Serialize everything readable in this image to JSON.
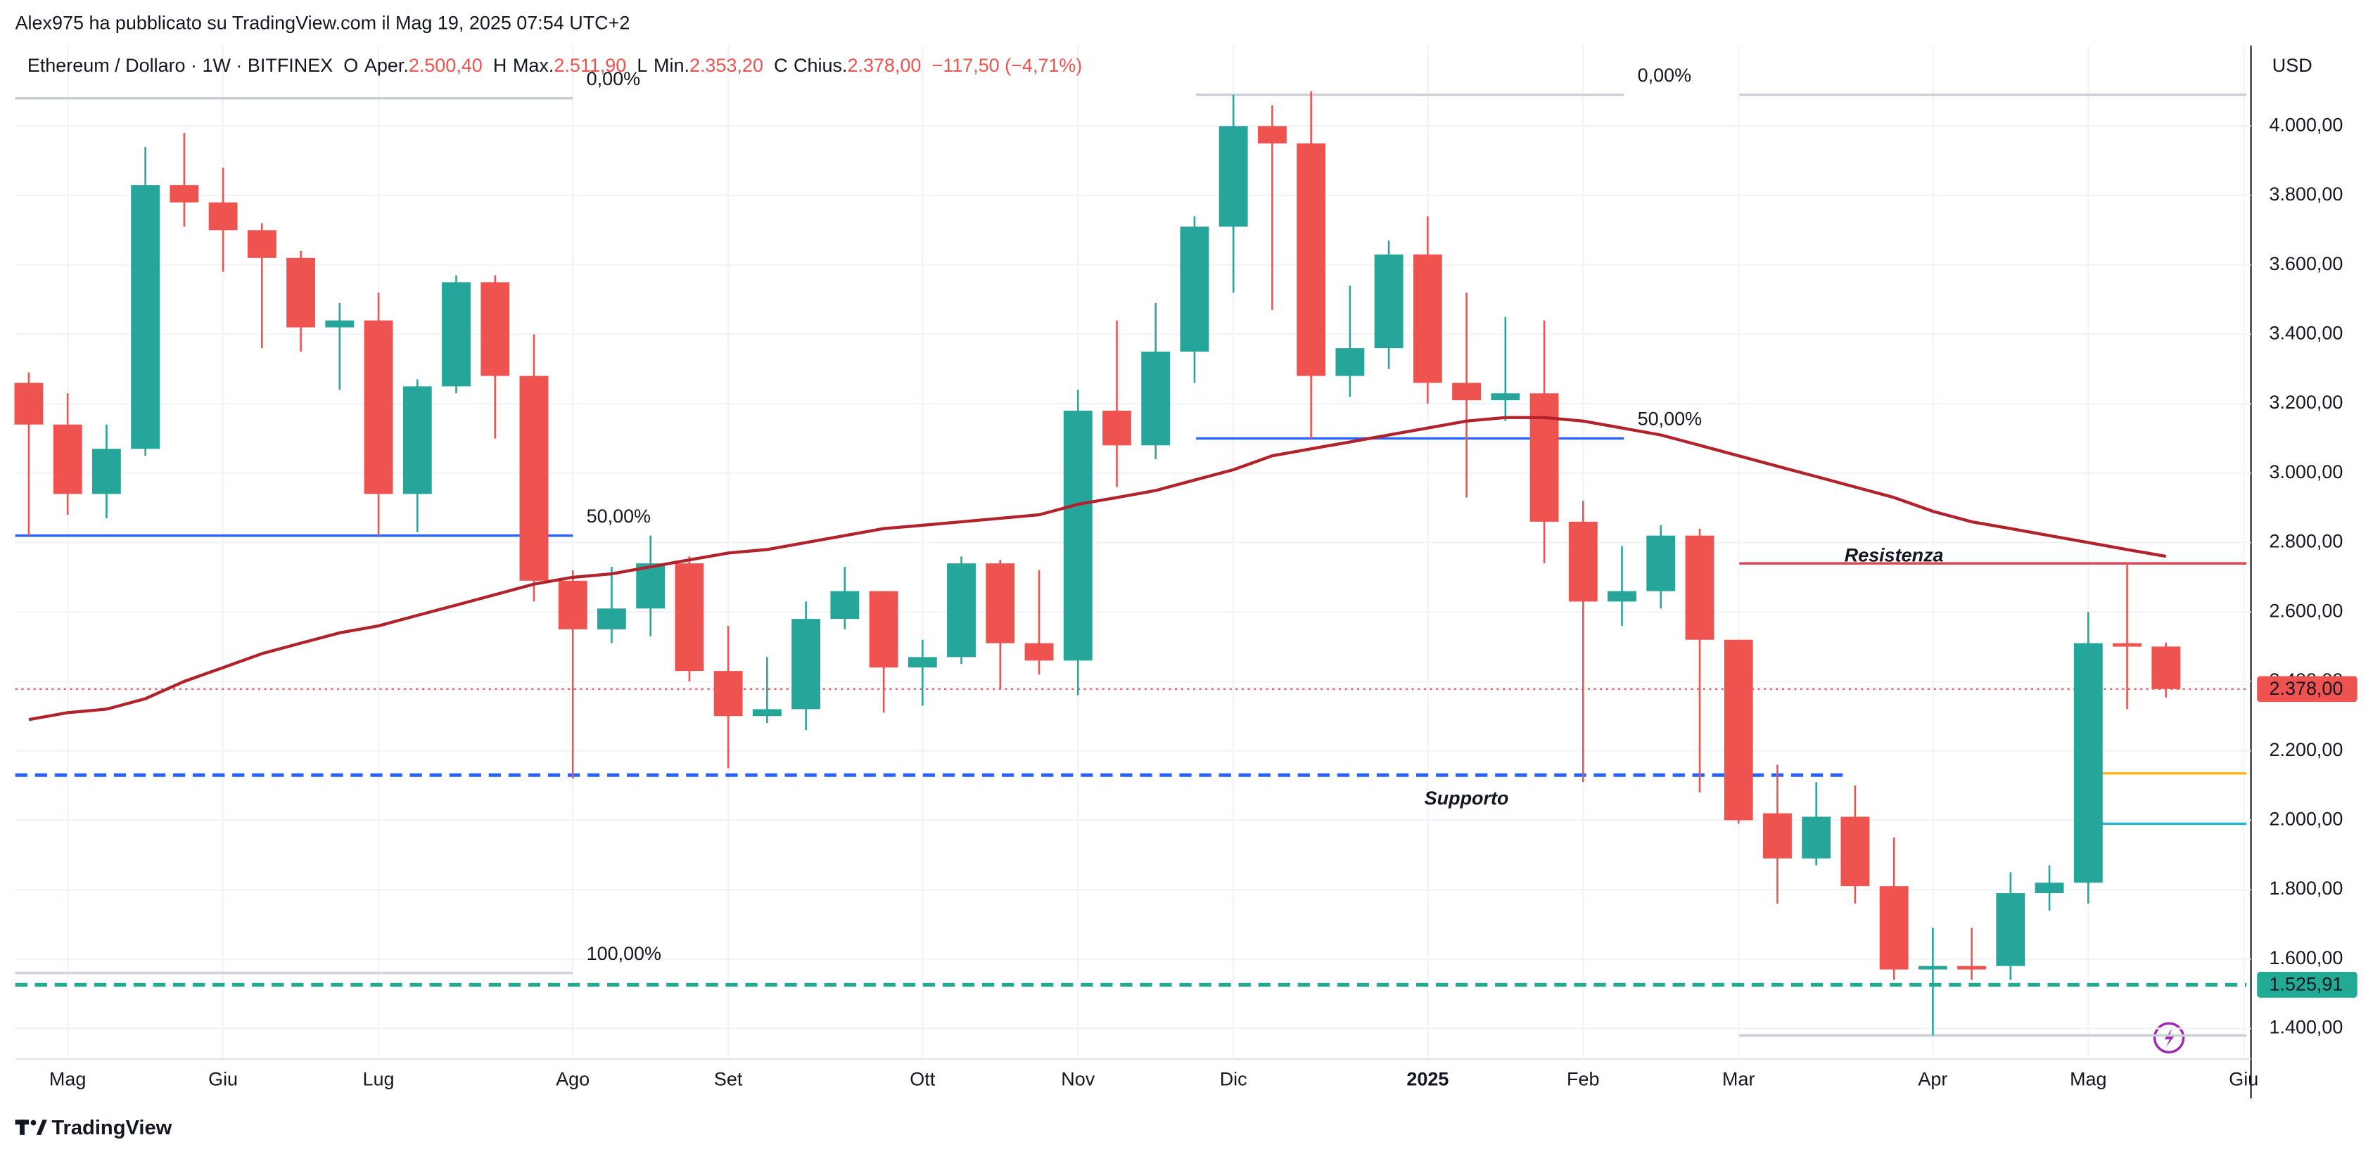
{
  "header": {
    "text": "Alex975 ha pubblicato su TradingView.com il Mag 19, 2025 07:54 UTC+2"
  },
  "legend": {
    "symbol": "Ethereum / Dollaro · 1W · BITFINEX",
    "fields": [
      {
        "key": "O",
        "name": "Aper.",
        "value": "2.500,40"
      },
      {
        "key": "H",
        "name": "Max.",
        "value": "2.511,90"
      },
      {
        "key": "L",
        "name": "Min.",
        "value": "2.353,20"
      },
      {
        "key": "C",
        "name": "Chius.",
        "value": "2.378,00"
      }
    ],
    "change": "−117,50 (−4,71%)"
  },
  "currency": "USD",
  "footer": {
    "brand": "TradingView"
  },
  "chart_data": {
    "type": "candlestick",
    "up_color": "#26a69a",
    "down_color": "#ef5350",
    "open": [
      3260,
      3140,
      2940,
      3070,
      3830,
      3780,
      3700,
      3620,
      3420,
      3440,
      2940,
      3250,
      3550,
      3280,
      2690,
      2550,
      2610,
      2740,
      2430,
      2300,
      2320,
      2580,
      2660,
      2440,
      2470,
      2740,
      2510,
      2460,
      3180,
      3080,
      3350,
      3710,
      4000,
      3950,
      3280,
      3360,
      3630,
      3260,
      3210,
      3230,
      2860,
      2630,
      2660,
      2820,
      2520,
      2020,
      1890,
      2010,
      1810,
      1570,
      1580,
      1580,
      1790,
      1820,
      2510,
      2500.4
    ],
    "high": [
      3290,
      3230,
      3140,
      3940,
      3980,
      3880,
      3720,
      3640,
      3490,
      3520,
      3270,
      3570,
      3570,
      3400,
      2720,
      2730,
      2820,
      2760,
      2560,
      2470,
      2630,
      2730,
      2660,
      2520,
      2760,
      2750,
      2720,
      3240,
      3440,
      3490,
      3740,
      4090,
      4060,
      4100,
      3540,
      3670,
      3740,
      3520,
      3450,
      3440,
      2920,
      2790,
      2850,
      2840,
      2520,
      2160,
      2110,
      2100,
      1950,
      1690,
      1690,
      1850,
      1870,
      2600,
      2740,
      2511.9
    ],
    "low": [
      2820,
      2880,
      2870,
      3050,
      3710,
      3580,
      3360,
      3350,
      3240,
      2820,
      2830,
      3230,
      3100,
      2630,
      2120,
      2510,
      2530,
      2400,
      2150,
      2280,
      2260,
      2550,
      2310,
      2330,
      2450,
      2380,
      2420,
      2360,
      2960,
      3040,
      3260,
      3520,
      3470,
      3100,
      3220,
      3300,
      3200,
      2930,
      3150,
      2740,
      2110,
      2560,
      2610,
      2080,
      1990,
      1760,
      1870,
      1760,
      1540,
      1380,
      1540,
      1540,
      1740,
      1760,
      2320,
      2353.2
    ],
    "close": [
      3140,
      2940,
      3070,
      3830,
      3780,
      3700,
      3620,
      3420,
      3440,
      2940,
      3250,
      3550,
      3280,
      2690,
      2550,
      2610,
      2740,
      2430,
      2300,
      2320,
      2580,
      2660,
      2440,
      2470,
      2740,
      2510,
      2460,
      3180,
      3080,
      3350,
      3710,
      4000,
      3950,
      3280,
      3360,
      3630,
      3260,
      3210,
      3230,
      2860,
      2630,
      2660,
      2820,
      2520,
      2000,
      1890,
      2010,
      1810,
      1570,
      1580,
      1570,
      1790,
      1820,
      2510,
      2500,
      2378
    ],
    "overlays": [
      {
        "color": "#b2222b",
        "values": [
          2290,
          2310,
          2320,
          2350,
          2400,
          2440,
          2480,
          2510,
          2540,
          2560,
          2590,
          2620,
          2650,
          2680,
          2700,
          2710,
          2730,
          2750,
          2770,
          2780,
          2800,
          2820,
          2840,
          2850,
          2860,
          2870,
          2880,
          2910,
          2930,
          2950,
          2980,
          3010,
          3050,
          3070,
          3090,
          3110,
          3130,
          3150,
          3160,
          3160,
          3150,
          3130,
          3110,
          3080,
          3050,
          3020,
          2990,
          2960,
          2930,
          2890,
          2860,
          2840,
          2820,
          2800,
          2780,
          2760
        ]
      }
    ],
    "xlim": [
      -0.35,
      57.07
    ],
    "xticks": [
      {
        "value": 1,
        "label": "Mag"
      },
      {
        "value": 5,
        "label": "Giu"
      },
      {
        "value": 9,
        "label": "Lug"
      },
      {
        "value": 14,
        "label": "Ago"
      },
      {
        "value": 18,
        "label": "Set"
      },
      {
        "value": 23,
        "label": "Ott"
      },
      {
        "value": 27,
        "label": "Nov"
      },
      {
        "value": 31,
        "label": "Dic"
      },
      {
        "value": 36,
        "label": "2025"
      },
      {
        "value": 40,
        "label": "Feb"
      },
      {
        "value": 44,
        "label": "Mar"
      },
      {
        "value": 49,
        "label": "Apr"
      },
      {
        "value": 53,
        "label": "Mag"
      },
      {
        "value": 57,
        "label": "Giu"
      }
    ],
    "ylim": [
      1312,
      4232
    ],
    "yticks": [
      {
        "value": 1400,
        "label": "1.400,00"
      },
      {
        "value": 1600,
        "label": "1.600,00"
      },
      {
        "value": 1800,
        "label": "1.800,00"
      },
      {
        "value": 2000,
        "label": "2.000,00"
      },
      {
        "value": 2200,
        "label": "2.200,00"
      },
      {
        "value": 2400,
        "label": "2.400,00"
      },
      {
        "value": 2600,
        "label": "2.600,00"
      },
      {
        "value": 2800,
        "label": "2.800,00"
      },
      {
        "value": 3000,
        "label": "3.000,00"
      },
      {
        "value": 3200,
        "label": "3.200,00"
      },
      {
        "value": 3400,
        "label": "3.400,00"
      },
      {
        "value": 3600,
        "label": "3.600,00"
      },
      {
        "value": 3800,
        "label": "3.800,00"
      },
      {
        "value": 4000,
        "label": "4.000,00"
      }
    ],
    "grid": true,
    "levels": [
      {
        "value": 4080,
        "from": -0.35,
        "to": 14,
        "color": "#c9cdd8",
        "style": "solid",
        "label": "0,00%"
      },
      {
        "value": 2820,
        "from": -0.35,
        "to": 14,
        "color": "#2962ff",
        "style": "solid",
        "label": "50,00%"
      },
      {
        "value": 1560,
        "from": -0.35,
        "to": 14,
        "color": "#d1d4dc",
        "style": "solid",
        "label": "100,00%"
      },
      {
        "value": 4090,
        "from": 30.04,
        "to": 41.05,
        "color": "#c9cdd8",
        "style": "solid",
        "label": "0,00%"
      },
      {
        "value": 3100,
        "from": 30.04,
        "to": 41.05,
        "color": "#2962ff",
        "style": "solid",
        "label": "50,00%"
      },
      {
        "value": 4090,
        "from": 44.02,
        "to": 57.07,
        "color": "#c9cdd8",
        "style": "solid"
      },
      {
        "value": 1380,
        "from": 44.02,
        "to": 57.07,
        "color": "#c9cdd8",
        "style": "solid"
      },
      {
        "value": 2740,
        "from": 44.02,
        "to": 57.07,
        "color": "#e04455",
        "style": "solid"
      },
      {
        "value": 2130,
        "from": -0.35,
        "to": 46.7,
        "color": "#2962ff",
        "style": "dashed"
      },
      {
        "value": 2135,
        "from": 53.36,
        "to": 57.07,
        "color": "#f7b924",
        "style": "solid"
      },
      {
        "value": 1990,
        "from": 53.36,
        "to": 57.07,
        "color": "#22b8cf",
        "style": "solid"
      },
      {
        "value": 2378,
        "from": -0.35,
        "to": 57.07,
        "color": "#ef5350",
        "style": "dotted",
        "tag": "2.378,00"
      },
      {
        "value": 1525.91,
        "from": -0.35,
        "to": 57.07,
        "color": "#22ab94",
        "style": "dashed",
        "tag": "1.525,91"
      }
    ],
    "annotations": [
      {
        "text": "Resistenza",
        "x": 48,
        "y": 2760,
        "color": "#e04455"
      },
      {
        "text": "Supporto",
        "x": 37,
        "y": 2060,
        "color": "#5b9be6"
      }
    ]
  }
}
